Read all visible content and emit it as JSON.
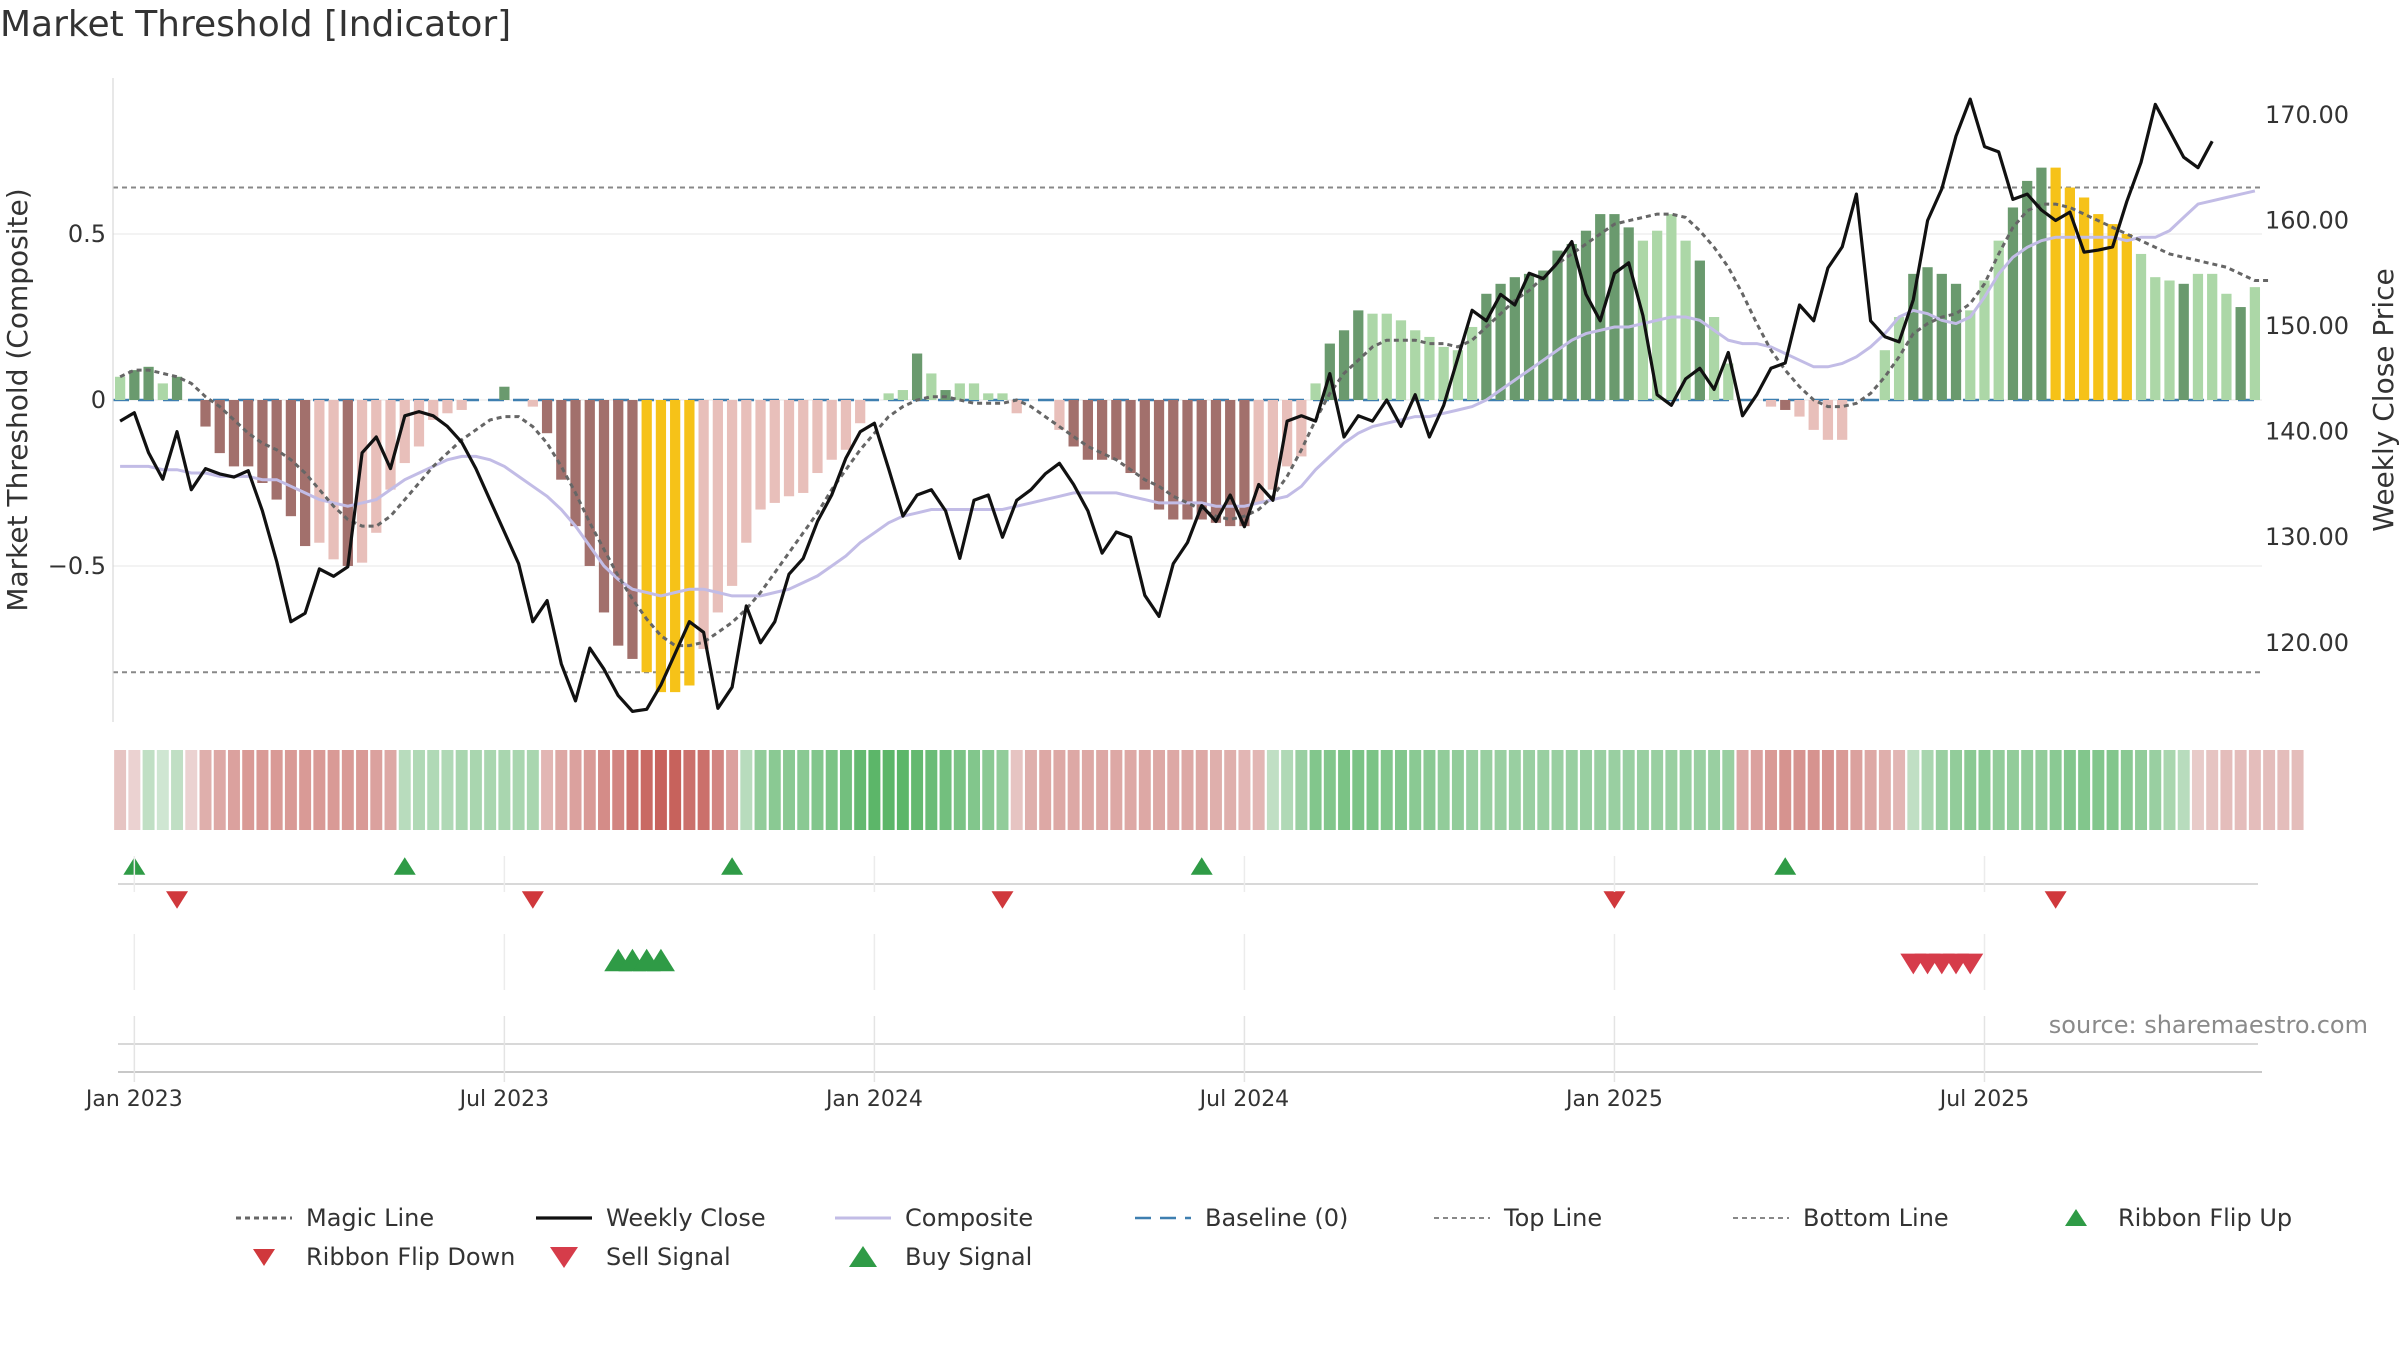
{
  "title": "Market Threshold [Indicator]",
  "source": "source: sharemaestro.com",
  "colors": {
    "dark_green": "#6a9a6e",
    "light_green": "#acd7a7",
    "dark_red": "#a2706c",
    "light_red": "#e8bfba",
    "gold": "#f6c218",
    "magic": "#666666",
    "weekly_close": "#111111",
    "composite": "#c2bce6",
    "baseline": "#3e7fb0",
    "guide": "#888888",
    "buy": "#2f9b46",
    "sell": "#d63c4a"
  },
  "chart_data": {
    "type": "bar",
    "ylabel_left": "Market Threshold (Composite)",
    "ylabel_right": "Weekly Close Price",
    "yticks_left": [
      "0.5",
      "0",
      "−0.5"
    ],
    "yticks_left_values": [
      0.5,
      0,
      -0.5
    ],
    "yticks_right": [
      "170.00",
      "160.00",
      "150.00",
      "140.00",
      "130.00",
      "120.00"
    ],
    "yticks_right_values": [
      170,
      160,
      150,
      140,
      130,
      120
    ],
    "ylim_left": [
      -0.97,
      0.97
    ],
    "ylim_right": [
      112.5,
      173.5
    ],
    "x_tick_labels": [
      "Jan 2023",
      "Jul 2023",
      "Jan 2024",
      "Jul 2024",
      "Jan 2025",
      "Jul 2025"
    ],
    "x_tick_weeks": [
      1,
      27,
      53,
      79,
      105,
      131
    ],
    "top_line": 0.64,
    "bottom_line": -0.82,
    "legend": [
      "Magic Line",
      "Weekly Close",
      "Composite",
      "Baseline (0)",
      "Top Line",
      "Bottom Line",
      "Ribbon Flip Up",
      "Ribbon Flip Down",
      "Sell Signal",
      "Buy Signal"
    ],
    "composite_bars": [
      0.07,
      0.09,
      0.1,
      0.05,
      0.07,
      0,
      -0.08,
      -0.16,
      -0.2,
      -0.2,
      -0.25,
      -0.3,
      -0.35,
      -0.44,
      -0.43,
      -0.48,
      -0.5,
      -0.49,
      -0.4,
      -0.27,
      -0.19,
      -0.14,
      -0.06,
      -0.04,
      -0.03,
      0,
      0,
      0.04,
      0,
      -0.02,
      -0.1,
      -0.24,
      -0.38,
      -0.5,
      -0.64,
      -0.74,
      -0.78,
      -0.82,
      -0.88,
      -0.88,
      -0.86,
      -0.75,
      -0.64,
      -0.56,
      -0.43,
      -0.33,
      -0.31,
      -0.29,
      -0.28,
      -0.22,
      -0.18,
      -0.15,
      -0.07,
      0,
      0.02,
      0.03,
      0.14,
      0.08,
      0.03,
      0.05,
      0.05,
      0.02,
      0.02,
      -0.04,
      0,
      0,
      -0.09,
      -0.14,
      -0.18,
      -0.18,
      -0.18,
      -0.22,
      -0.27,
      -0.33,
      -0.36,
      -0.36,
      -0.36,
      -0.37,
      -0.38,
      -0.38,
      -0.31,
      -0.27,
      -0.2,
      -0.17,
      0.05,
      0.17,
      0.21,
      0.27,
      0.26,
      0.26,
      0.24,
      0.21,
      0.19,
      0.16,
      0.15,
      0.22,
      0.32,
      0.35,
      0.37,
      0.38,
      0.39,
      0.45,
      0.47,
      0.51,
      0.56,
      0.56,
      0.52,
      0.48,
      0.51,
      0.56,
      0.48,
      0.42,
      0.25,
      0.11,
      0,
      -0.01,
      -0.02,
      -0.03,
      -0.05,
      -0.09,
      -0.12,
      -0.12,
      0,
      0.05,
      0.15,
      0.25,
      0.38,
      0.4,
      0.38,
      0.35,
      0.27,
      0.36,
      0.48,
      0.58,
      0.66,
      0.7,
      0.7,
      0.64,
      0.61,
      0.56,
      0.53,
      0.5,
      0.44,
      0.37,
      0.36,
      0.35,
      0.38,
      0.38,
      0.32,
      0.28,
      0.34
    ],
    "composite_shades": [
      "l",
      "d",
      "d",
      "l",
      "d",
      "n",
      "d",
      "d",
      "d",
      "d",
      "d",
      "d",
      "d",
      "d",
      "l",
      "l",
      "d",
      "l",
      "l",
      "l",
      "l",
      "l",
      "l",
      "l",
      "l",
      "n",
      "n",
      "d",
      "n",
      "l",
      "d",
      "d",
      "d",
      "d",
      "d",
      "d",
      "d",
      "g",
      "g",
      "g",
      "g",
      "l",
      "l",
      "l",
      "l",
      "l",
      "l",
      "l",
      "l",
      "l",
      "l",
      "l",
      "l",
      "n",
      "l",
      "l",
      "d",
      "l",
      "d",
      "l",
      "l",
      "l",
      "l",
      "l",
      "n",
      "n",
      "l",
      "d",
      "d",
      "d",
      "d",
      "d",
      "d",
      "d",
      "d",
      "d",
      "d",
      "d",
      "d",
      "d",
      "l",
      "l",
      "l",
      "l",
      "l",
      "d",
      "d",
      "d",
      "l",
      "l",
      "l",
      "l",
      "l",
      "l",
      "l",
      "l",
      "d",
      "d",
      "d",
      "d",
      "d",
      "d",
      "d",
      "d",
      "d",
      "d",
      "d",
      "l",
      "l",
      "l",
      "l",
      "d",
      "l",
      "l",
      "l",
      "n",
      "l",
      "d",
      "l",
      "l",
      "l",
      "l",
      "l",
      "n",
      "l",
      "l",
      "d",
      "d",
      "d",
      "d",
      "l",
      "l",
      "l",
      "d",
      "d",
      "d",
      "g",
      "g",
      "g",
      "g",
      "g",
      "g",
      "l",
      "l",
      "l",
      "d",
      "l",
      "l",
      "l",
      "d",
      "l",
      "l",
      "l",
      "d"
    ],
    "weekly_close": [
      141,
      141.8,
      138,
      135.5,
      140,
      134.5,
      136.5,
      136,
      135.7,
      136.3,
      132.5,
      127.7,
      122,
      122.8,
      127,
      126.3,
      127.2,
      138,
      139.5,
      136.5,
      141.5,
      141.9,
      141.5,
      140.5,
      139,
      136.5,
      133.5,
      130.5,
      127.5,
      122,
      124,
      118,
      114.5,
      119.5,
      117.5,
      115,
      113.5,
      113.7,
      116,
      119,
      122,
      121,
      113.8,
      115.8,
      123.5,
      120,
      122,
      126.5,
      128,
      131.5,
      134,
      137.5,
      140,
      140.8,
      136.5,
      132,
      134,
      134.5,
      132.5,
      128,
      133.5,
      134,
      130,
      133.5,
      134.5,
      136,
      137,
      135,
      132.5,
      128.5,
      130.5,
      130,
      124.5,
      122.5,
      127.5,
      129.5,
      133,
      131.5,
      134,
      131,
      135,
      133.5,
      141,
      141.5,
      141,
      145.5,
      139.5,
      141.5,
      141,
      143,
      140.5,
      143.5,
      139.5,
      142.5,
      147,
      151.5,
      150.5,
      153,
      152,
      155,
      154.5,
      156,
      158,
      153,
      150.5,
      155,
      156,
      151,
      143.5,
      142.5,
      145,
      146,
      144,
      147.5,
      141.5,
      143.5,
      146,
      146.5,
      152,
      150.5,
      155.5,
      157.5,
      162.5,
      150.5,
      149,
      148.5,
      152.5,
      160,
      163,
      168,
      171.5,
      167,
      166.5,
      162,
      162.5,
      161,
      160,
      160.8,
      157,
      157.2,
      157.5,
      161.8,
      165.5,
      171,
      168.5,
      166,
      165,
      167.5
    ],
    "composite_line": [
      -0.2,
      -0.2,
      -0.2,
      -0.21,
      -0.21,
      -0.22,
      -0.22,
      -0.23,
      -0.23,
      -0.23,
      -0.24,
      -0.24,
      -0.26,
      -0.28,
      -0.3,
      -0.31,
      -0.32,
      -0.31,
      -0.3,
      -0.27,
      -0.24,
      -0.22,
      -0.2,
      -0.18,
      -0.17,
      -0.17,
      -0.18,
      -0.2,
      -0.23,
      -0.26,
      -0.29,
      -0.33,
      -0.38,
      -0.44,
      -0.5,
      -0.54,
      -0.57,
      -0.58,
      -0.59,
      -0.58,
      -0.57,
      -0.57,
      -0.58,
      -0.59,
      -0.59,
      -0.59,
      -0.58,
      -0.57,
      -0.55,
      -0.53,
      -0.5,
      -0.47,
      -0.43,
      -0.4,
      -0.37,
      -0.35,
      -0.34,
      -0.33,
      -0.33,
      -0.33,
      -0.33,
      -0.33,
      -0.33,
      -0.32,
      -0.31,
      -0.3,
      -0.29,
      -0.28,
      -0.28,
      -0.28,
      -0.28,
      -0.29,
      -0.3,
      -0.31,
      -0.31,
      -0.31,
      -0.31,
      -0.32,
      -0.32,
      -0.32,
      -0.31,
      -0.3,
      -0.29,
      -0.26,
      -0.21,
      -0.17,
      -0.13,
      -0.1,
      -0.08,
      -0.07,
      -0.06,
      -0.05,
      -0.05,
      -0.04,
      -0.03,
      -0.02,
      0,
      0.03,
      0.06,
      0.09,
      0.12,
      0.15,
      0.18,
      0.2,
      0.21,
      0.22,
      0.22,
      0.23,
      0.24,
      0.25,
      0.25,
      0.24,
      0.21,
      0.18,
      0.17,
      0.17,
      0.16,
      0.14,
      0.12,
      0.1,
      0.1,
      0.11,
      0.13,
      0.16,
      0.2,
      0.25,
      0.27,
      0.26,
      0.24,
      0.23,
      0.25,
      0.31,
      0.38,
      0.43,
      0.46,
      0.48,
      0.49,
      0.49,
      0.49,
      0.49,
      0.49,
      0.48,
      0.49,
      0.49,
      0.51,
      0.55,
      0.59,
      0.6,
      0.61,
      0.62,
      0.63
    ],
    "magic_line": [
      0.07,
      0.09,
      0.09,
      0.08,
      0.07,
      0.05,
      0.01,
      -0.02,
      -0.06,
      -0.1,
      -0.13,
      -0.15,
      -0.18,
      -0.22,
      -0.27,
      -0.32,
      -0.36,
      -0.38,
      -0.38,
      -0.35,
      -0.3,
      -0.25,
      -0.2,
      -0.16,
      -0.12,
      -0.09,
      -0.06,
      -0.05,
      -0.05,
      -0.08,
      -0.13,
      -0.2,
      -0.28,
      -0.37,
      -0.45,
      -0.53,
      -0.6,
      -0.66,
      -0.71,
      -0.74,
      -0.74,
      -0.73,
      -0.7,
      -0.67,
      -0.63,
      -0.58,
      -0.52,
      -0.46,
      -0.4,
      -0.34,
      -0.27,
      -0.21,
      -0.15,
      -0.1,
      -0.05,
      -0.02,
      0,
      0.01,
      0.01,
      0,
      -0.01,
      -0.01,
      -0.01,
      0,
      -0.02,
      -0.05,
      -0.08,
      -0.11,
      -0.14,
      -0.16,
      -0.18,
      -0.21,
      -0.24,
      -0.26,
      -0.29,
      -0.31,
      -0.33,
      -0.35,
      -0.36,
      -0.35,
      -0.33,
      -0.29,
      -0.23,
      -0.15,
      -0.06,
      0.02,
      0.08,
      0.12,
      0.16,
      0.18,
      0.18,
      0.18,
      0.17,
      0.17,
      0.16,
      0.18,
      0.22,
      0.26,
      0.3,
      0.33,
      0.37,
      0.41,
      0.44,
      0.47,
      0.5,
      0.53,
      0.54,
      0.55,
      0.56,
      0.56,
      0.55,
      0.51,
      0.46,
      0.4,
      0.32,
      0.23,
      0.15,
      0.09,
      0.04,
      0,
      -0.02,
      -0.02,
      -0.01,
      0.02,
      0.07,
      0.13,
      0.2,
      0.23,
      0.25,
      0.26,
      0.29,
      0.35,
      0.44,
      0.52,
      0.57,
      0.59,
      0.59,
      0.58,
      0.56,
      0.54,
      0.52,
      0.5,
      0.48,
      0.46,
      0.44,
      0.43,
      0.42,
      0.41,
      0.4,
      0.38,
      0.36,
      0.36
    ],
    "ribbon": [
      -0.3,
      -0.2,
      0.3,
      0.2,
      0.3,
      -0.2,
      -0.45,
      -0.5,
      -0.55,
      -0.6,
      -0.6,
      -0.6,
      -0.6,
      -0.6,
      -0.6,
      -0.6,
      -0.6,
      -0.6,
      -0.55,
      -0.5,
      0.35,
      0.4,
      0.4,
      0.4,
      0.45,
      0.45,
      0.45,
      0.45,
      0.45,
      0.45,
      -0.4,
      -0.5,
      -0.55,
      -0.6,
      -0.7,
      -0.75,
      -0.9,
      -0.95,
      -1,
      -1,
      -0.9,
      -0.9,
      -0.75,
      -0.55,
      0.35,
      0.6,
      0.65,
      0.65,
      0.65,
      0.7,
      0.75,
      0.8,
      0.9,
      0.95,
      0.95,
      0.95,
      0.9,
      0.85,
      0.8,
      0.75,
      0.7,
      0.65,
      0.6,
      -0.3,
      -0.45,
      -0.5,
      -0.5,
      -0.5,
      -0.5,
      -0.5,
      -0.5,
      -0.5,
      -0.5,
      -0.5,
      -0.5,
      -0.5,
      -0.5,
      -0.45,
      -0.45,
      -0.4,
      -0.4,
      0.3,
      0.4,
      0.55,
      0.7,
      0.7,
      0.75,
      0.75,
      0.75,
      0.7,
      0.7,
      0.65,
      0.65,
      0.6,
      0.6,
      0.55,
      0.55,
      0.55,
      0.55,
      0.55,
      0.55,
      0.55,
      0.55,
      0.55,
      0.55,
      0.55,
      0.55,
      0.55,
      0.55,
      0.55,
      0.55,
      0.55,
      0.55,
      0.55,
      -0.5,
      -0.55,
      -0.6,
      -0.65,
      -0.65,
      -0.65,
      -0.65,
      -0.6,
      -0.55,
      -0.5,
      -0.45,
      -0.4,
      0.3,
      0.45,
      0.55,
      0.6,
      0.65,
      0.65,
      0.6,
      0.6,
      0.6,
      0.6,
      0.65,
      0.7,
      0.7,
      0.7,
      0.7,
      0.65,
      0.6,
      0.55,
      0.45,
      0.35,
      -0.25,
      -0.3,
      -0.35,
      -0.35,
      -0.35,
      -0.35,
      -0.35,
      -0.35
    ],
    "ribbon_flip_up": [
      1,
      20,
      43,
      76,
      117
    ],
    "ribbon_flip_down": [
      4,
      29,
      62,
      105,
      136
    ],
    "buy_signal": [
      35,
      36,
      37,
      38
    ],
    "sell_signal": [
      126,
      127,
      128,
      129,
      130
    ]
  }
}
